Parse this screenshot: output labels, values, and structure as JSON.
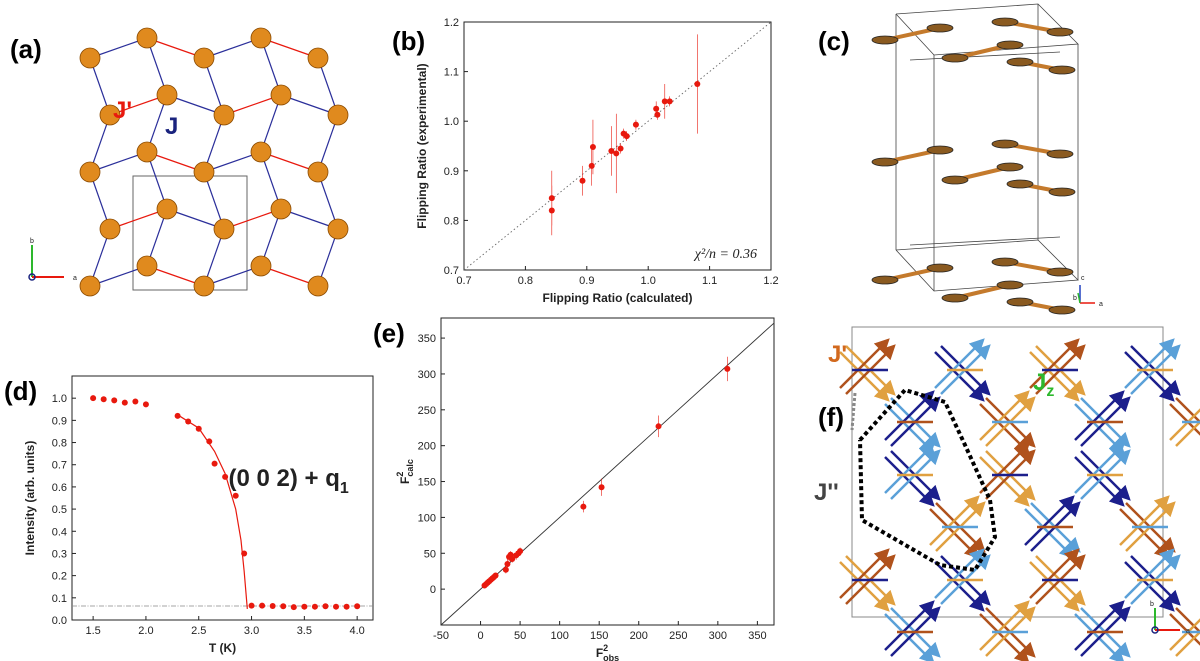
{
  "chart_data": [
    {
      "type": "scatter",
      "panel_label": "(b)",
      "xlabel": "Flipping Ratio (calculated)",
      "ylabel": "Flipping Ratio (experimental)",
      "annotation": "χ²/n = 0.36",
      "xlim": [
        0.7,
        1.2
      ],
      "ylim": [
        0.7,
        1.2
      ],
      "xticks": [
        0.7,
        0.8,
        0.9,
        {
          "value": 1,
          "label": "1.0"
        },
        1.1,
        1.2
      ],
      "yticks": [
        0.7,
        0.8,
        0.9,
        {
          "value": 1,
          "label": "1.0"
        },
        1.1,
        1.2
      ],
      "diagonal": "dotted",
      "series": [
        {
          "color": "#e8190e",
          "x": [
            0.843,
            0.843,
            0.893,
            0.908,
            0.91,
            0.94,
            0.948,
            0.955,
            0.96,
            0.965,
            0.98,
            1.013,
            1.015,
            1.027,
            1.035,
            1.08
          ],
          "values": [
            0.845,
            0.82,
            0.88,
            0.91,
            0.948,
            0.94,
            0.935,
            0.945,
            0.975,
            0.97,
            0.993,
            1.025,
            1.013,
            1.04,
            1.04,
            1.075
          ],
          "errors": [
            0.055,
            0.05,
            0.03,
            0.04,
            0.055,
            0.05,
            0.08,
            0.01,
            0.01,
            0.01,
            0.01,
            0.015,
            0.01,
            0.035,
            0.01,
            0.1
          ]
        }
      ]
    },
    {
      "type": "scatter",
      "panel_label": "(d)",
      "xlabel": "T (K)",
      "ylabel": "Intensity (arb. units)",
      "annotation": "(0 0 2) + q",
      "annotation_sub": "1",
      "xlim": [
        1.3,
        4.15
      ],
      "ylim": [
        0,
        1.1
      ],
      "xticks": [
        1.5,
        {
          "value": 2,
          "label": "2.0"
        },
        2.5,
        {
          "value": 3,
          "label": "3.0"
        },
        3.5,
        {
          "value": 4,
          "label": "4.0"
        }
      ],
      "yticks": [
        {
          "value": 0,
          "label": "0.0"
        },
        0.1,
        0.2,
        0.3,
        0.4,
        0.5,
        0.6,
        0.7,
        0.8,
        0.9,
        {
          "value": 1,
          "label": "1.0"
        }
      ],
      "reference_line": 0.063,
      "series": [
        {
          "color": "#e8190e",
          "style": "markers",
          "x": [
            1.5,
            1.6,
            1.7,
            1.8,
            1.9,
            2.0,
            2.3,
            2.4,
            2.5,
            2.6,
            2.65,
            2.75,
            2.85,
            2.93,
            3.0,
            3.1,
            3.2,
            3.3,
            3.4,
            3.5,
            3.6,
            3.7,
            3.8,
            3.9,
            4.0
          ],
          "values": [
            1.0,
            0.995,
            0.99,
            0.98,
            0.985,
            0.972,
            0.92,
            0.895,
            0.862,
            0.805,
            0.705,
            0.645,
            0.56,
            0.3,
            0.065,
            0.065,
            0.063,
            0.062,
            0.058,
            0.06,
            0.06,
            0.062,
            0.06,
            0.06,
            0.062
          ]
        },
        {
          "color": "#e8190e",
          "style": "line",
          "x": [
            2.3,
            2.5,
            2.65,
            2.75,
            2.85,
            2.9,
            2.93,
            2.96
          ],
          "values": [
            0.925,
            0.865,
            0.76,
            0.66,
            0.5,
            0.36,
            0.22,
            0.05
          ]
        }
      ]
    },
    {
      "type": "scatter",
      "panel_label": "(e)",
      "xlabel": {
        "base": "F",
        "sup": "2",
        "sub": "obs"
      },
      "ylabel": {
        "base": "F",
        "sup": "2",
        "sub": "calc"
      },
      "xlim": [
        -50,
        371
      ],
      "ylim": [
        -50,
        378
      ],
      "xticks": [
        -50,
        0,
        50,
        100,
        150,
        200,
        250,
        300,
        350
      ],
      "yticks": [
        0,
        50,
        100,
        150,
        200,
        250,
        300,
        350
      ],
      "diagonal": "solid",
      "series": [
        {
          "color": "#e8190e",
          "x": [
            5,
            7,
            9,
            11,
            13,
            15,
            17,
            19,
            32,
            34,
            36,
            38,
            40,
            45,
            48,
            50,
            130,
            153,
            225,
            312
          ],
          "values": [
            5,
            7,
            9,
            11,
            13,
            15,
            17,
            19,
            27,
            35,
            45,
            48,
            42,
            47,
            50,
            53,
            115,
            142,
            227,
            307
          ],
          "errors": [
            3,
            3,
            3,
            3,
            3,
            3,
            3,
            3,
            5,
            8,
            6,
            5,
            5,
            6,
            5,
            5,
            8,
            12,
            15,
            17
          ]
        }
      ]
    }
  ],
  "figure": {
    "a": {
      "label": "(a)",
      "j_prime": "J'",
      "j": "J",
      "axis_b": "b",
      "axis_a": "a"
    },
    "c": {
      "label": "(c)",
      "axis_c": "c",
      "axis_b": "b",
      "axis_a": "a"
    },
    "f": {
      "label": "(f)",
      "j_prime": "J'",
      "j_z": "J",
      "j_z_sub": "z",
      "j_double_prime": "J''",
      "axis_b": "b",
      "axis_a": "a"
    }
  }
}
